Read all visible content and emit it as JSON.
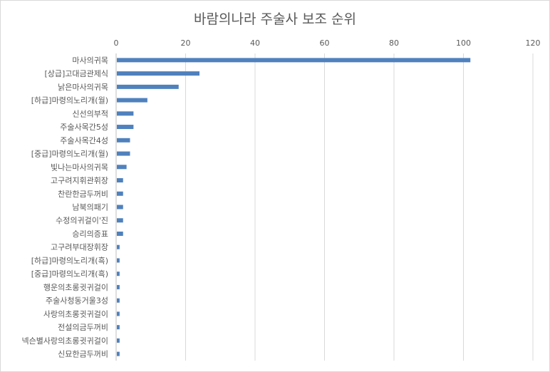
{
  "chart_data": {
    "type": "bar",
    "orientation": "horizontal",
    "title": "바람의나라 주술사 보조 순위",
    "xlabel": "",
    "ylabel": "",
    "xlim": [
      0,
      120
    ],
    "xticks": [
      0,
      20,
      40,
      60,
      80,
      100,
      120
    ],
    "x_axis_position": "top",
    "grid": true,
    "legend": "none",
    "color": "#4f81bd",
    "categories": [
      "마사의귀목",
      "[상급]고대금관제식",
      "낡은마사의귀목",
      "[하급]마령의노리개(월)",
      "신선의부적",
      "주술사목간5성",
      "주술사목간4성",
      "[중급]마령의노리개(월)",
      "빛나는마사의귀목",
      "고구려지휘관휘장",
      "찬란한금두꺼비",
      "남북의패기",
      "수정의귀걸이'진",
      "승리의증표",
      "고구려부대장휘장",
      "[하급]마령의노리개(흑)",
      "[중급]마령의노리개(흑)",
      "행운의초롱귓귀걸이",
      "주술사청동거울3성",
      "사랑의초롱귓귀걸이",
      "전설의금두꺼비",
      "넥슨별사랑의초롱귓귀걸이",
      "신묘한금두꺼비"
    ],
    "values": [
      102,
      24,
      18,
      9,
      5,
      5,
      4,
      4,
      3,
      2,
      2,
      2,
      2,
      2,
      1,
      1,
      1,
      1,
      1,
      1,
      1,
      1,
      1
    ]
  }
}
